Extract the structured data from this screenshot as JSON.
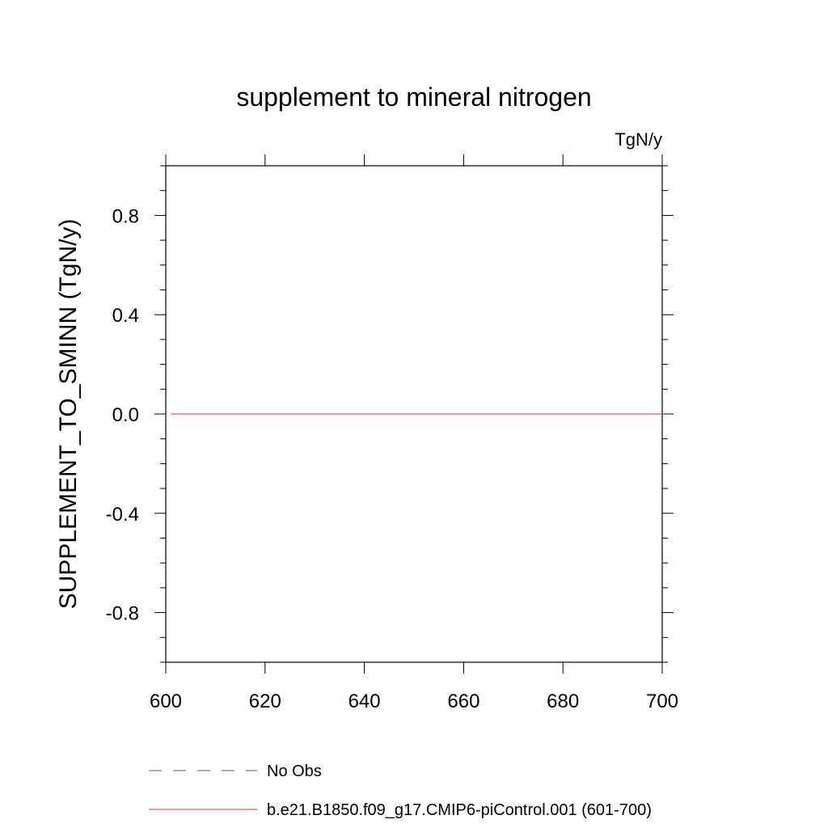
{
  "chart_data": {
    "type": "line",
    "title": "supplement to mineral nitrogen",
    "units": "TgN/y",
    "ylabel": "SUPPLEMENT_TO_SMINN  (TgN/y)",
    "xlabel": "",
    "xlim": [
      600,
      700
    ],
    "ylim": [
      -1.0,
      1.0
    ],
    "xticks": [
      600,
      620,
      640,
      660,
      680,
      700
    ],
    "yticks": [
      0.8,
      0.4,
      0.0,
      -0.4,
      -0.8
    ],
    "ytick_labels": [
      "0.8",
      "0.4",
      "0.0",
      "-0.4",
      "-0.8"
    ],
    "x_minor_step": 20,
    "y_minor_step": 0.1,
    "grid": false,
    "legend": "bottom",
    "series": [
      {
        "name": "No Obs",
        "style": "dashed",
        "color": "#7d6fc4",
        "x": [],
        "y": []
      },
      {
        "name": "b.e21.B1850.f09_g17.CMIP6-piControl.001 (601-700)",
        "style": "solid",
        "color": "#e8585b",
        "x": [
          601,
          700
        ],
        "y": [
          0.0,
          0.0
        ]
      }
    ]
  }
}
